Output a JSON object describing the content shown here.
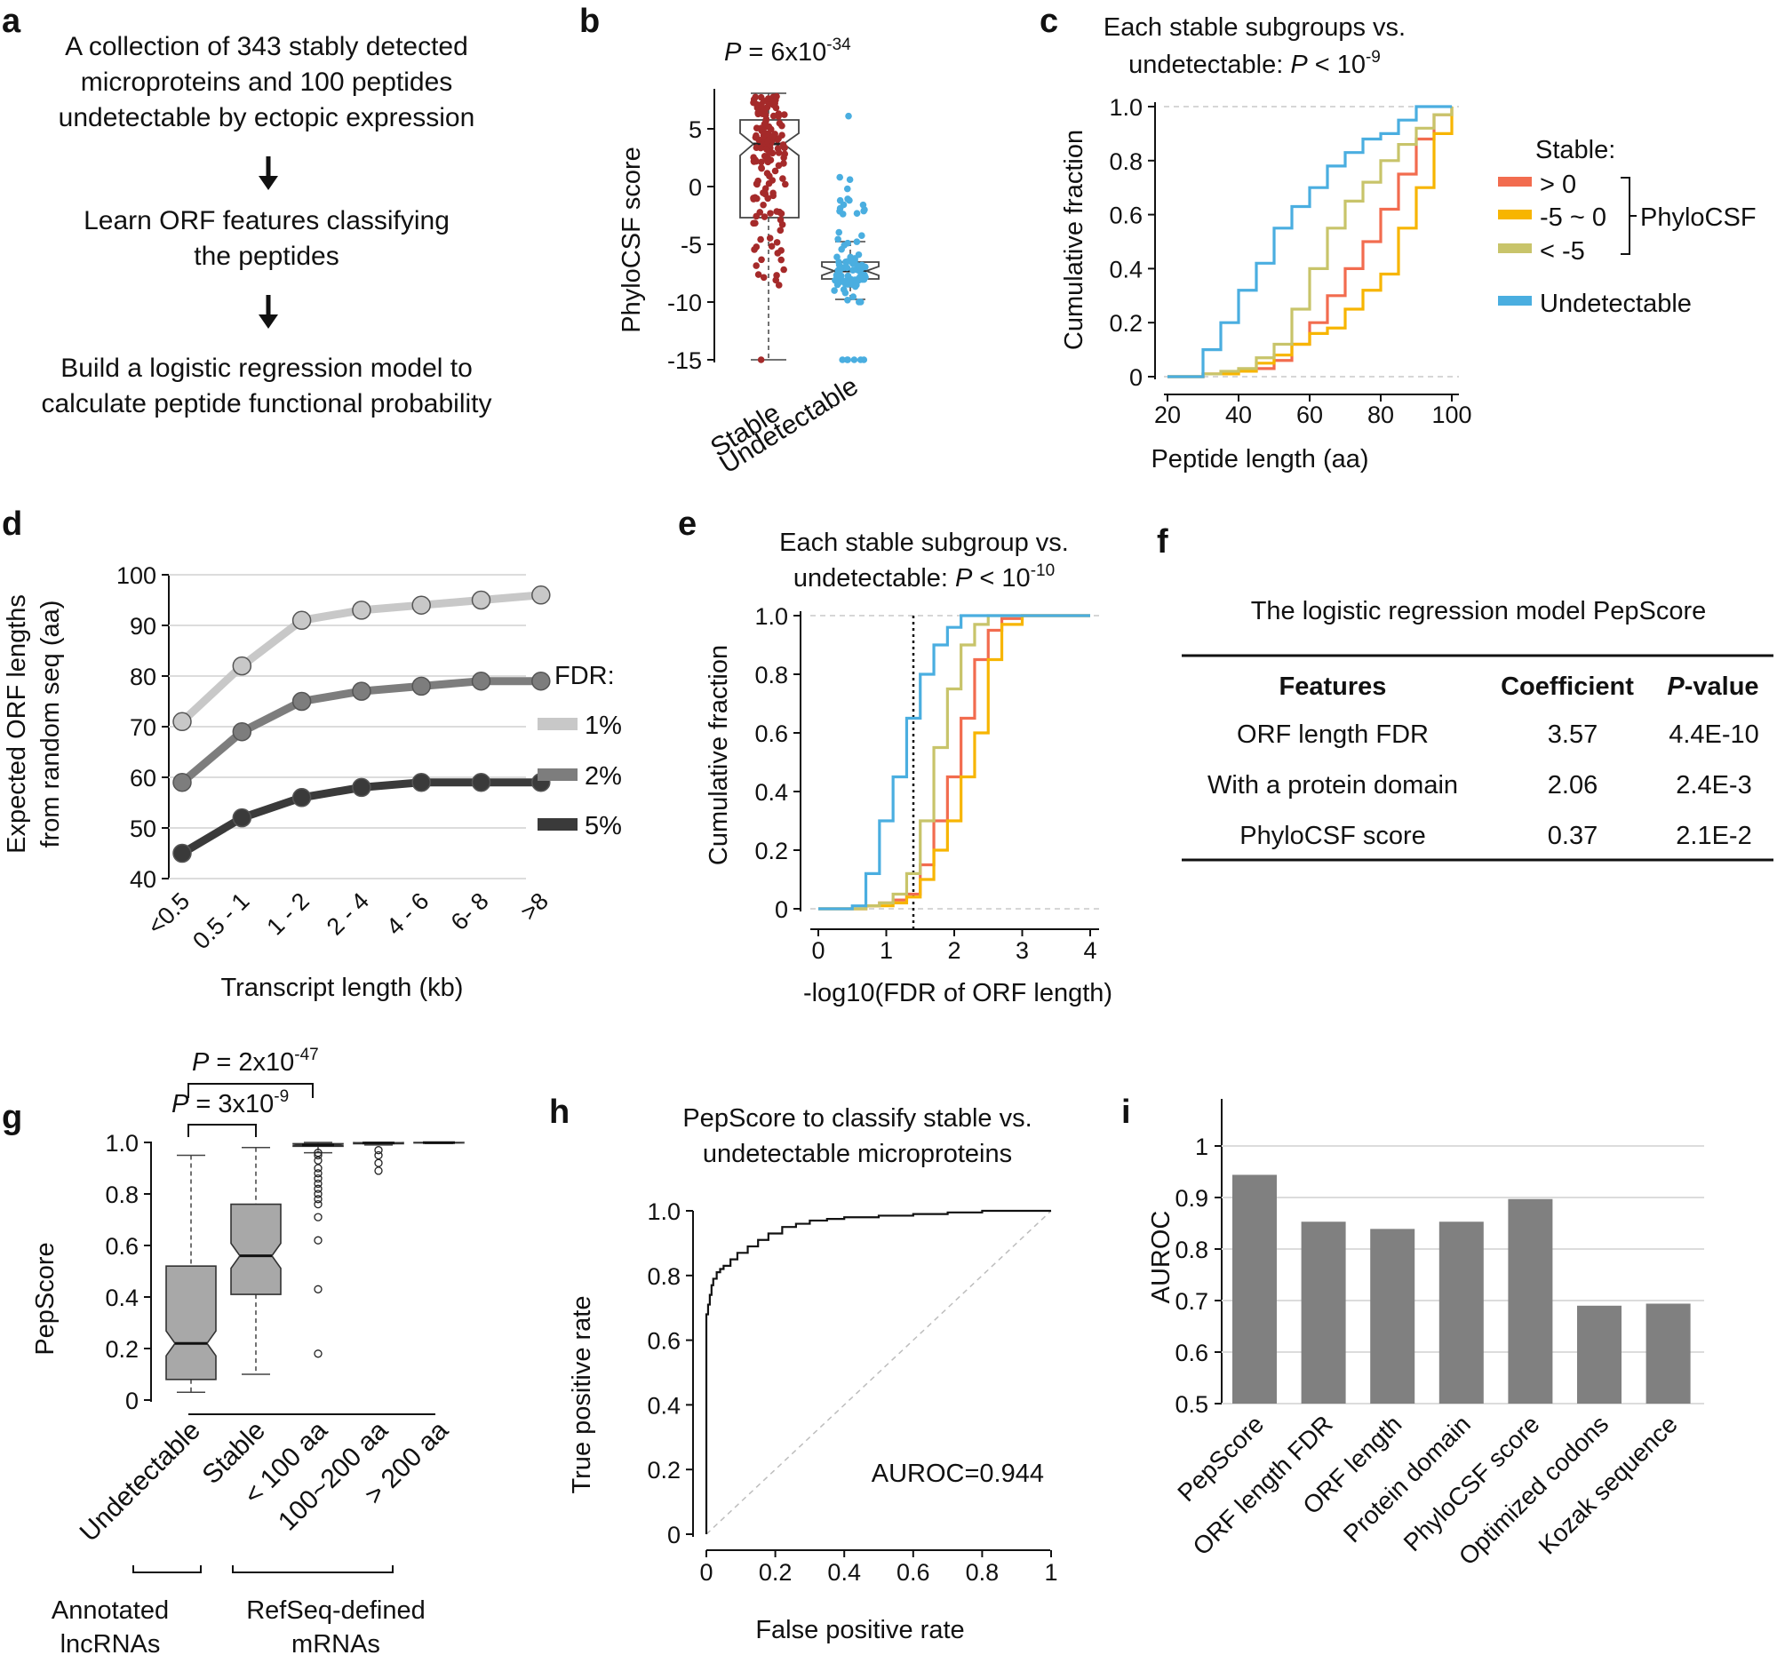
{
  "panels": {
    "a": {
      "label": "a",
      "step1": [
        "A collection of 343 stably detected",
        "microproteins and 100 peptides",
        "undetectable by ectopic expression"
      ],
      "step2": [
        "Learn ORF features classifying",
        "the peptides"
      ],
      "step3": [
        "Build a logistic regression model to",
        "calculate peptide functional probability"
      ]
    },
    "b": {
      "label": "b",
      "p_prefix": "P",
      "p_mid": " = 6x10",
      "p_exp": "-34",
      "ylabel": "PhyloCSF score",
      "yticks": [
        "5",
        "0",
        "-5",
        "-10",
        "-15"
      ],
      "xcats": [
        "Stable",
        "Undetectable"
      ],
      "colors": {
        "stable": "#a52a2a",
        "undetectable": "#4aaee0"
      }
    },
    "c": {
      "label": "c",
      "title1": "Each stable subgroups vs.",
      "title2_a": "undetectable: ",
      "title2_p": "P",
      "title2_b": " < 10",
      "title2_exp": "-9",
      "ylabel": "Cumulative fraction",
      "xlabel": "Peptide length (aa)",
      "yticks": [
        "1.0",
        "0.8",
        "0.6",
        "0.4",
        "0.2",
        "0"
      ],
      "xticks": [
        "20",
        "40",
        "60",
        "80",
        "100"
      ],
      "legend_title": "Stable:",
      "legend": [
        {
          "label": "> 0",
          "color": "#f26c4f"
        },
        {
          "label": "-5 ~ 0",
          "color": "#f7b500"
        },
        {
          "label": "< -5",
          "color": "#c8c46a"
        },
        {
          "label": "Undetectable",
          "color": "#4aaee0"
        }
      ],
      "bracket_label": "PhyloCSF"
    },
    "d": {
      "label": "d",
      "ylabel1": "Expected ORF lengths",
      "ylabel2": "from random seq (aa)",
      "xlabel": "Transcript length (kb)",
      "legend_title": "FDR:"
    },
    "e": {
      "label": "e",
      "title1": "Each stable subgroup vs.",
      "title2_a": "undetectable: ",
      "title2_p": "P",
      "title2_b": " < 10",
      "title2_exp": "-10",
      "ylabel": "Cumulative fraction",
      "xlabel": "-log10(FDR of ORF length)",
      "yticks": [
        "1.0",
        "0.8",
        "0.6",
        "0.4",
        "0.2",
        "0"
      ],
      "xticks": [
        "0",
        "1",
        "2",
        "3",
        "4"
      ]
    },
    "f": {
      "label": "f",
      "title": "The logistic regression model PepScore",
      "headers": [
        "Features",
        "Coefficient",
        "P",
        "-value"
      ],
      "rows": [
        [
          "ORF length FDR",
          "3.57",
          "4.4E-10"
        ],
        [
          "With a protein domain",
          "2.06",
          "2.4E-3"
        ],
        [
          "PhyloCSF score",
          "0.37",
          "2.1E-2"
        ]
      ]
    },
    "g": {
      "label": "g",
      "ylabel": "PepScore",
      "yticks": [
        "1.0",
        "0.8",
        "0.6",
        "0.4",
        "0.2",
        "0"
      ],
      "xcats": [
        "Undetectable",
        "Stable",
        "< 100 aa",
        "100~200 aa",
        "> 200 aa"
      ],
      "p1_prefix": "P",
      "p1_mid": " = 3x10",
      "p1_exp": "-9",
      "p2_prefix": "P",
      "p2_mid": " = 2x10",
      "p2_exp": "-47",
      "group1": [
        "Annotated",
        "lncRNAs"
      ],
      "group2": [
        "RefSeq-defined",
        "mRNAs"
      ]
    },
    "h": {
      "label": "h",
      "title1": "PepScore to classify stable vs.",
      "title2": "undetectable microproteins",
      "ylabel": "True positive rate",
      "xlabel": "False positive rate",
      "yticks": [
        "1.0",
        "0.8",
        "0.6",
        "0.4",
        "0.2",
        "0"
      ],
      "xticks": [
        "0",
        "0.2",
        "0.4",
        "0.6",
        "0.8",
        "1"
      ],
      "auroc_text": "AUROC=0.944"
    },
    "i": {
      "label": "i",
      "ylabel": "AUROC",
      "yticks": [
        "1",
        "0.9",
        "0.8",
        "0.7",
        "0.6",
        "0.5"
      ]
    }
  },
  "chart_data": [
    {
      "panel": "d",
      "type": "line",
      "categories": [
        "<0.5",
        "0.5 - 1",
        "1 - 2",
        "2 - 4",
        "4 - 6",
        "6- 8",
        ">8"
      ],
      "series": [
        {
          "name": "1%",
          "values": [
            71,
            82,
            91,
            93,
            94,
            95,
            96
          ],
          "color": "#c8c8c8"
        },
        {
          "name": "2%",
          "values": [
            59,
            69,
            75,
            77,
            78,
            79,
            79
          ],
          "color": "#7d7d7d"
        },
        {
          "name": "5%",
          "values": [
            45,
            52,
            56,
            58,
            59,
            59,
            59
          ],
          "color": "#3a3a3a"
        }
      ],
      "yticks": [
        40,
        50,
        60,
        70,
        80,
        90,
        100
      ],
      "ylim": [
        40,
        100
      ],
      "xlabel": "Transcript length (kb)",
      "ylabel": "Expected ORF lengths from random seq (aa)"
    },
    {
      "panel": "i",
      "type": "bar",
      "categories": [
        "PepScore",
        "ORF length FDR",
        "ORF length",
        "Protein domain",
        "PhyloCSF score",
        "Optimized codons",
        "Kozak sequence"
      ],
      "values": [
        0.944,
        0.853,
        0.839,
        0.853,
        0.897,
        0.69,
        0.694
      ],
      "ylim": [
        0.5,
        1
      ],
      "ylabel": "AUROC",
      "color": "#808080"
    },
    {
      "panel": "h",
      "type": "line",
      "title": "PepScore to classify stable vs. undetectable microproteins",
      "x": [
        0,
        0,
        0.005,
        0.01,
        0.015,
        0.02,
        0.03,
        0.04,
        0.05,
        0.07,
        0.09,
        0.12,
        0.15,
        0.18,
        0.22,
        0.26,
        0.3,
        0.35,
        0.4,
        0.5,
        0.6,
        0.7,
        0.8,
        0.9,
        1
      ],
      "y": [
        0,
        0.62,
        0.68,
        0.71,
        0.74,
        0.77,
        0.79,
        0.81,
        0.82,
        0.83,
        0.85,
        0.87,
        0.89,
        0.91,
        0.93,
        0.95,
        0.96,
        0.97,
        0.975,
        0.98,
        0.985,
        0.99,
        0.995,
        1,
        1
      ],
      "xlim": [
        0,
        1
      ],
      "ylim": [
        0,
        1
      ],
      "xlabel": "False positive rate",
      "ylabel": "True positive rate"
    },
    {
      "panel": "c",
      "type": "line",
      "title": "Each stable subgroups vs. undetectable",
      "x": [
        20,
        25,
        30,
        35,
        40,
        45,
        50,
        55,
        60,
        65,
        70,
        75,
        80,
        85,
        90,
        95,
        100
      ],
      "series": [
        {
          "name": "> 0",
          "values": [
            0,
            0,
            0.01,
            0.01,
            0.02,
            0.03,
            0.06,
            0.12,
            0.2,
            0.3,
            0.4,
            0.5,
            0.62,
            0.75,
            0.88,
            0.97,
            1
          ]
        },
        {
          "name": "-5 ~ 0",
          "values": [
            0,
            0,
            0.01,
            0.01,
            0.02,
            0.05,
            0.08,
            0.12,
            0.16,
            0.18,
            0.25,
            0.32,
            0.38,
            0.55,
            0.7,
            0.9,
            1
          ]
        },
        {
          "name": "< -5",
          "values": [
            0,
            0,
            0.01,
            0.02,
            0.03,
            0.07,
            0.12,
            0.25,
            0.4,
            0.55,
            0.65,
            0.72,
            0.8,
            0.86,
            0.92,
            0.97,
            1
          ]
        },
        {
          "name": "Undetectable",
          "values": [
            0,
            0,
            0.1,
            0.2,
            0.32,
            0.42,
            0.55,
            0.63,
            0.7,
            0.78,
            0.83,
            0.88,
            0.9,
            0.95,
            1,
            1,
            1
          ]
        }
      ],
      "xlim": [
        20,
        100
      ],
      "ylim": [
        0,
        1
      ]
    },
    {
      "panel": "e",
      "type": "line",
      "title": "Each stable subgroup vs. undetectable",
      "x": [
        0,
        0.5,
        0.7,
        0.9,
        1.1,
        1.3,
        1.5,
        1.7,
        1.9,
        2.1,
        2.3,
        2.5,
        2.7,
        3.0,
        3.5,
        4.0
      ],
      "series": [
        {
          "name": "> 0",
          "values": [
            0,
            0,
            0.01,
            0.02,
            0.03,
            0.05,
            0.15,
            0.3,
            0.45,
            0.65,
            0.85,
            0.95,
            0.99,
            1,
            1,
            1
          ]
        },
        {
          "name": "-5 ~ 0",
          "values": [
            0,
            0,
            0.01,
            0.01,
            0.02,
            0.04,
            0.1,
            0.2,
            0.3,
            0.45,
            0.6,
            0.85,
            0.97,
            1,
            1,
            1
          ]
        },
        {
          "name": "< -5",
          "values": [
            0,
            0,
            0.01,
            0.02,
            0.05,
            0.12,
            0.3,
            0.55,
            0.75,
            0.9,
            0.97,
            1,
            1,
            1,
            1,
            1
          ]
        },
        {
          "name": "Undetectable",
          "values": [
            0,
            0.01,
            0.12,
            0.3,
            0.45,
            0.65,
            0.8,
            0.9,
            0.96,
            1,
            1,
            1,
            1,
            1,
            1,
            1
          ]
        }
      ],
      "xlim": [
        0,
        4
      ],
      "ylim": [
        0,
        1
      ]
    },
    {
      "panel": "b",
      "type": "box",
      "categories": [
        "Stable",
        "Undetectable"
      ],
      "box": [
        {
          "q1": -2.7,
          "median": 3.7,
          "q3": 5.6,
          "whisker_low": -15,
          "whisker_high": 7.8
        },
        {
          "q1": -8.0,
          "median": -7.3,
          "q3": -6.4,
          "whisker_low": -9.8,
          "whisker_high": -4.9
        }
      ],
      "ylim": [
        -16,
        8
      ]
    },
    {
      "panel": "g",
      "type": "box",
      "categories": [
        "Undetectable",
        "Stable",
        "< 100 aa",
        "100~200 aa",
        "> 200 aa"
      ],
      "box": [
        {
          "q1": 0.08,
          "median": 0.22,
          "q3": 0.52,
          "whisker_low": 0.03,
          "whisker_high": 0.95
        },
        {
          "q1": 0.41,
          "median": 0.56,
          "q3": 0.76,
          "whisker_low": 0.1,
          "whisker_high": 0.98
        },
        {
          "q1": 0.985,
          "median": 0.99,
          "q3": 0.995,
          "whisker_low": 0.96,
          "whisker_high": 1.0
        },
        {
          "q1": 0.995,
          "median": 0.998,
          "q3": 0.999,
          "whisker_low": 0.99,
          "whisker_high": 1.0
        },
        {
          "q1": 0.998,
          "median": 0.999,
          "q3": 1.0,
          "whisker_low": 0.996,
          "whisker_high": 1.0
        }
      ],
      "ylim": [
        0,
        1
      ]
    }
  ]
}
